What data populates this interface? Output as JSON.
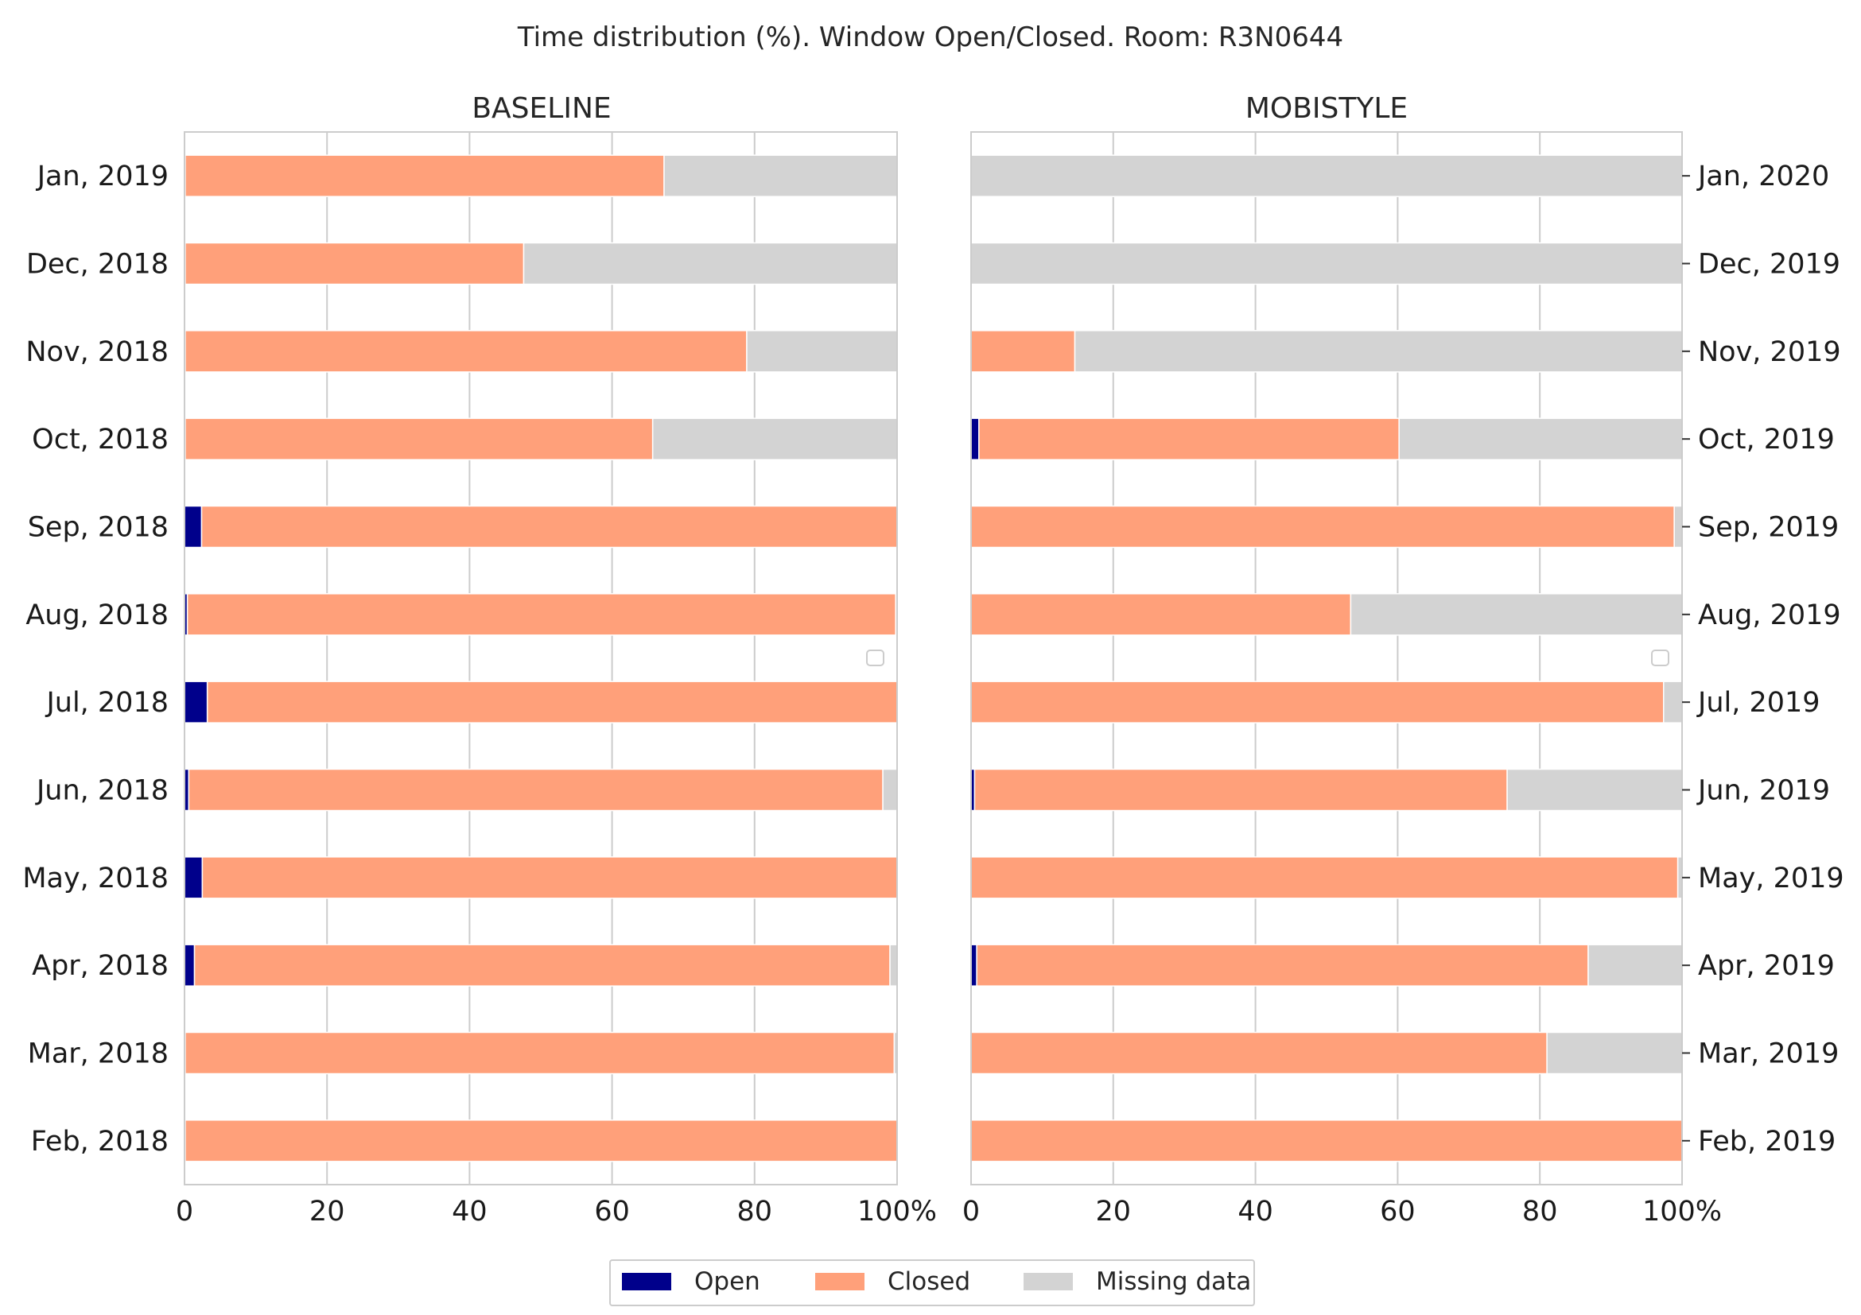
{
  "chart_data": [
    {
      "type": "bar",
      "orientation": "horizontal",
      "stacked": true,
      "title": "BASELINE",
      "categories": [
        "Feb, 2018",
        "Mar, 2018",
        "Apr, 2018",
        "May, 2018",
        "Jun, 2018",
        "Jul, 2018",
        "Aug, 2018",
        "Sep, 2018",
        "Oct, 2018",
        "Nov, 2018",
        "Dec, 2018",
        "Jan, 2019"
      ],
      "series": [
        {
          "name": "Open",
          "values": [
            0.1,
            0.1,
            1.4,
            2.5,
            0.6,
            3.2,
            0.4,
            2.4,
            0.1,
            0.1,
            0.1,
            0.1
          ]
        },
        {
          "name": "Closed",
          "values": [
            99.9,
            99.5,
            97.6,
            97.5,
            97.4,
            96.8,
            99.4,
            97.6,
            65.6,
            78.8,
            47.5,
            67.2
          ]
        },
        {
          "name": "Missing data",
          "values": [
            0.0,
            0.4,
            1.0,
            0.0,
            2.0,
            0.0,
            0.2,
            0.0,
            34.3,
            21.1,
            52.4,
            32.7
          ]
        }
      ],
      "xlim": [
        0,
        100
      ],
      "xticks": [
        "0",
        "20",
        "40",
        "60",
        "80",
        "100%"
      ],
      "ytick_side": "left"
    },
    {
      "type": "bar",
      "orientation": "horizontal",
      "stacked": true,
      "title": "MOBISTYLE",
      "categories": [
        "Feb, 2019",
        "Mar, 2019",
        "Apr, 2019",
        "May, 2019",
        "Jun, 2019",
        "Jul, 2019",
        "Aug, 2019",
        "Sep, 2019",
        "Oct, 2019",
        "Nov, 2019",
        "Dec, 2019",
        "Jan, 2020"
      ],
      "series": [
        {
          "name": "Open",
          "values": [
            0.0,
            0.0,
            0.8,
            0.0,
            0.5,
            0.0,
            0.0,
            0.0,
            1.1,
            0.0,
            0.0,
            0.0
          ]
        },
        {
          "name": "Closed",
          "values": [
            100.0,
            81.0,
            86.0,
            99.4,
            74.9,
            97.4,
            53.4,
            98.9,
            59.1,
            14.6,
            0.0,
            0.0
          ]
        },
        {
          "name": "Missing data",
          "values": [
            0.0,
            19.0,
            13.2,
            0.6,
            24.6,
            2.6,
            46.6,
            1.1,
            39.8,
            85.4,
            100.0,
            100.0
          ]
        }
      ],
      "xlim": [
        0,
        100
      ],
      "xticks": [
        "0",
        "20",
        "40",
        "60",
        "80",
        "100%"
      ],
      "ytick_side": "right"
    }
  ],
  "figure": {
    "title": "Time distribution (%). Window Open/Closed. Room: R3N0644"
  },
  "legend": {
    "placement": "bottom-center",
    "items": [
      {
        "label": "Open",
        "color": "#00008b"
      },
      {
        "label": "Closed",
        "color": "#ffa07a"
      },
      {
        "label": "Missing data",
        "color": "#d3d3d3"
      }
    ]
  }
}
